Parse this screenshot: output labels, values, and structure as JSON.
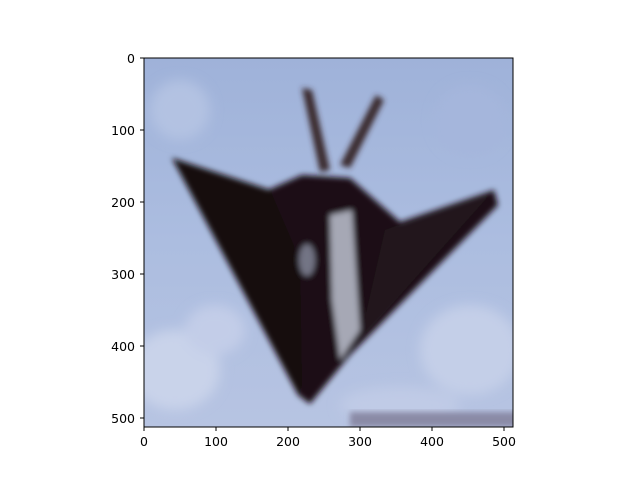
{
  "figure": {
    "background": "#ffffff",
    "image": {
      "subject": "stealth-aircraft-photo",
      "colors": {
        "sky": "#a9b9dc",
        "sky_light": "#c6d1e8",
        "aircraft_dark": "#1a1013",
        "aircraft_mid": "#3a2a2e",
        "aircraft_highlight": "#bfc3d2"
      }
    },
    "axes": {
      "x_ticks": [
        "0",
        "100",
        "200",
        "300",
        "400",
        "500"
      ],
      "y_ticks": [
        "0",
        "100",
        "200",
        "300",
        "400",
        "500"
      ],
      "x_range": [
        0,
        512
      ],
      "y_range": [
        0,
        512
      ],
      "y_inverted": true
    }
  }
}
